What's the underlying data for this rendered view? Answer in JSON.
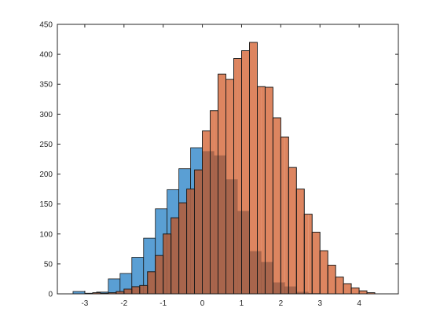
{
  "chart_data": {
    "type": "bar",
    "title": "",
    "xlabel": "",
    "ylabel": "",
    "xlim": [
      -3.7,
      5.0
    ],
    "ylim": [
      0,
      450
    ],
    "xticks": [
      -3,
      -2,
      -1,
      0,
      1,
      2,
      3,
      4
    ],
    "yticks": [
      0,
      50,
      100,
      150,
      200,
      250,
      300,
      350,
      400,
      450
    ],
    "grid": false,
    "box": true,
    "series": [
      {
        "color": "#5a9fd4",
        "bin_width": 0.3,
        "bin_edges": [
          -3.3,
          -3.0,
          -2.7,
          -2.4,
          -2.1,
          -1.8,
          -1.5,
          -1.2,
          -0.9,
          -0.6,
          -0.3,
          0.0,
          0.3,
          0.6,
          0.9,
          1.2,
          1.5,
          1.8,
          2.1,
          2.4,
          2.7,
          3.0
        ],
        "counts": [
          4,
          1,
          3,
          25,
          34,
          61,
          93,
          142,
          174,
          209,
          244,
          238,
          231,
          191,
          138,
          71,
          53,
          19,
          12,
          3,
          1
        ]
      },
      {
        "color": "#dd8560",
        "bin_width": 0.2,
        "bin_edges": [
          -3.0,
          -2.8,
          -2.6,
          -2.4,
          -2.2,
          -2.0,
          -1.8,
          -1.6,
          -1.4,
          -1.2,
          -1.0,
          -0.8,
          -0.6,
          -0.4,
          -0.2,
          0.0,
          0.2,
          0.4,
          0.6,
          0.8,
          1.0,
          1.2,
          1.4,
          1.6,
          1.8,
          2.0,
          2.2,
          2.4,
          2.6,
          2.8,
          3.0,
          3.2,
          3.4,
          3.6,
          3.8,
          4.0,
          4.2,
          4.4
        ],
        "counts": [
          0,
          2,
          1,
          2,
          4,
          8,
          12,
          14,
          37,
          64,
          100,
          127,
          152,
          175,
          207,
          272,
          306,
          367,
          358,
          393,
          406,
          420,
          346,
          345,
          294,
          262,
          211,
          175,
          133,
          103,
          72,
          48,
          28,
          17,
          10,
          5,
          2
        ]
      }
    ]
  },
  "style": {
    "overlap_color": "#a8654c",
    "edge_color": "#1a1a1a",
    "axis_color": "#262626"
  }
}
